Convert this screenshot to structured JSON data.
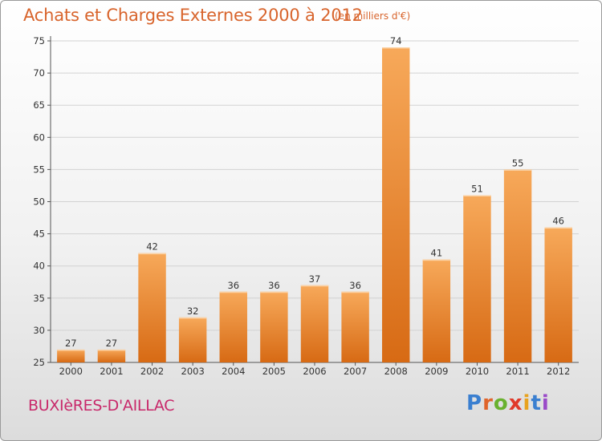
{
  "header": {
    "title": "Achats et Charges Externes 2000 à 2012",
    "subtitle": "(en milliers d'€)"
  },
  "footer": {
    "place": "BUXIèRES-D'AILLAC",
    "logo_letters": [
      "P",
      "r",
      "o",
      "x",
      "i",
      "t",
      "i"
    ],
    "logo_colors": [
      "#3a7fd0",
      "#e0642a",
      "#69b12e",
      "#e03a2a",
      "#e8a21e",
      "#3a7fd0",
      "#9a4ac8"
    ]
  },
  "colors": {
    "bar_top": "#f7a95a",
    "bar_bottom": "#d76a14",
    "text_accent": "#d8642c",
    "place": "#c8286a"
  },
  "chart_data": {
    "type": "bar",
    "categories": [
      "2000",
      "2001",
      "2002",
      "2003",
      "2004",
      "2005",
      "2006",
      "2007",
      "2008",
      "2009",
      "2010",
      "2011",
      "2012"
    ],
    "values": [
      27,
      27,
      42,
      32,
      36,
      36,
      37,
      36,
      74,
      41,
      51,
      55,
      46
    ],
    "title": "Achats et Charges Externes 2000 à 2012",
    "subtitle": "(en milliers d'€)",
    "xlabel": "",
    "ylabel": "",
    "ylim": [
      25,
      75
    ],
    "yticks": [
      25,
      30,
      35,
      40,
      45,
      50,
      55,
      60,
      65,
      70,
      75
    ],
    "grid": true,
    "legend": "none"
  }
}
